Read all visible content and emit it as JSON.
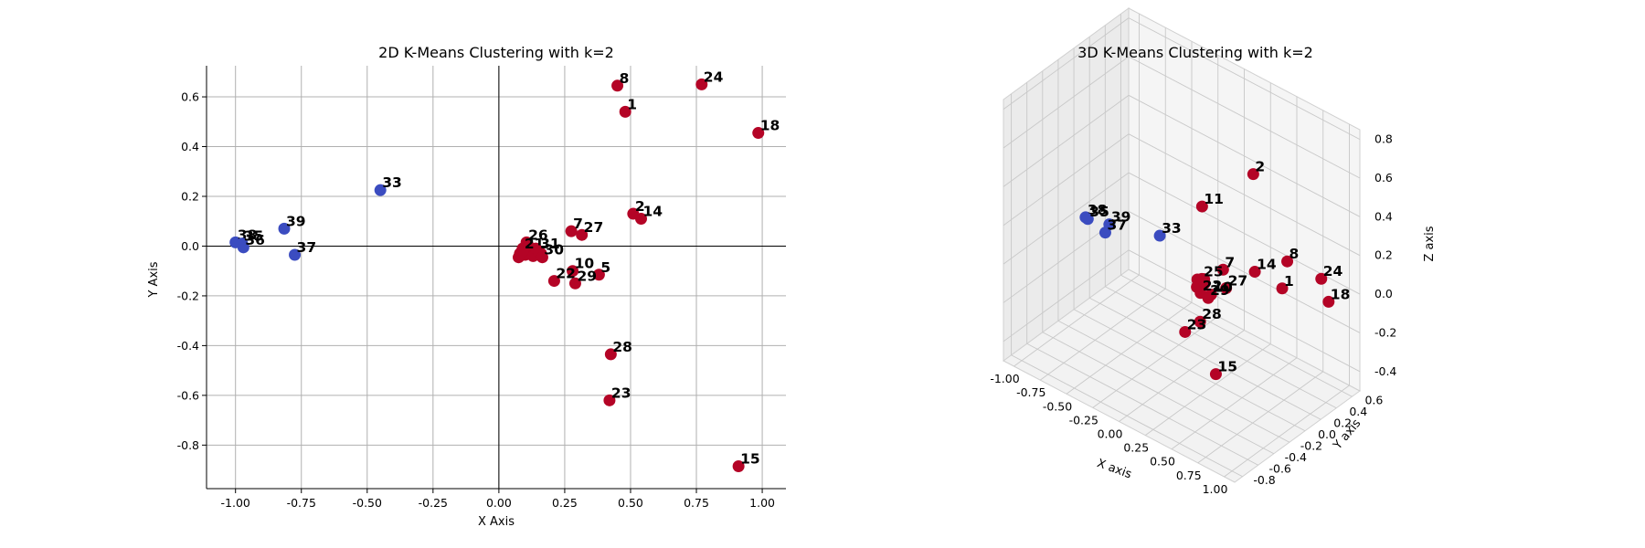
{
  "colors": {
    "cluster0": "#3b4cc0",
    "cluster1": "#b40426"
  },
  "chart_data": [
    {
      "type": "scatter",
      "title": "2D K-Means Clustering with k=2",
      "xlabel": "X Axis",
      "ylabel": "Y Axis",
      "xlim": [
        -1.11,
        1.09
      ],
      "ylim": [
        -0.975,
        0.725
      ],
      "xticks": [
        "-1.00",
        "-0.75",
        "-0.50",
        "-0.25",
        "0.00",
        "0.25",
        "0.50",
        "0.75",
        "1.00"
      ],
      "yticks": [
        "-0.8",
        "-0.6",
        "-0.4",
        "-0.2",
        "0.0",
        "0.2",
        "0.4",
        "0.6"
      ],
      "grid": true,
      "points": [
        {
          "label": "8",
          "x": 0.45,
          "y": 0.645,
          "cluster": 1
        },
        {
          "label": "24",
          "x": 0.77,
          "y": 0.65,
          "cluster": 1
        },
        {
          "label": "1",
          "x": 0.48,
          "y": 0.54,
          "cluster": 1
        },
        {
          "label": "18",
          "x": 0.985,
          "y": 0.455,
          "cluster": 1
        },
        {
          "label": "33",
          "x": -0.45,
          "y": 0.225,
          "cluster": 0
        },
        {
          "label": "39",
          "x": -0.815,
          "y": 0.07,
          "cluster": 0
        },
        {
          "label": "37",
          "x": -0.775,
          "y": -0.035,
          "cluster": 0
        },
        {
          "label": "38",
          "x": -1.0,
          "y": 0.015,
          "cluster": 0
        },
        {
          "label": "35",
          "x": -0.975,
          "y": 0.01,
          "cluster": 0
        },
        {
          "label": "36",
          "x": -0.97,
          "y": -0.005,
          "cluster": 0
        },
        {
          "label": "2",
          "x": 0.51,
          "y": 0.13,
          "cluster": 1
        },
        {
          "label": "14",
          "x": 0.54,
          "y": 0.11,
          "cluster": 1
        },
        {
          "label": "7",
          "x": 0.275,
          "y": 0.06,
          "cluster": 1
        },
        {
          "label": "27",
          "x": 0.315,
          "y": 0.045,
          "cluster": 1
        },
        {
          "label": "26",
          "x": 0.105,
          "y": 0.015,
          "cluster": 1
        },
        {
          "label": "21",
          "x": 0.09,
          "y": -0.02,
          "cluster": 1
        },
        {
          "label": "31",
          "x": 0.15,
          "y": -0.02,
          "cluster": 1
        },
        {
          "label": "30",
          "x": 0.165,
          "y": -0.045,
          "cluster": 1
        },
        {
          "label": "10",
          "x": 0.28,
          "y": -0.1,
          "cluster": 1
        },
        {
          "label": "5",
          "x": 0.38,
          "y": -0.115,
          "cluster": 1
        },
        {
          "label": "22",
          "x": 0.21,
          "y": -0.14,
          "cluster": 1
        },
        {
          "label": "29",
          "x": 0.29,
          "y": -0.15,
          "cluster": 1
        },
        {
          "label": "28",
          "x": 0.425,
          "y": -0.435,
          "cluster": 1
        },
        {
          "label": "23",
          "x": 0.42,
          "y": -0.62,
          "cluster": 1
        },
        {
          "label": "15",
          "x": 0.91,
          "y": -0.885,
          "cluster": 1
        }
      ]
    },
    {
      "type": "scatter",
      "title": "3D K-Means Clustering with k=2",
      "xlabel": "X axis",
      "ylabel": "Y axis",
      "zlabel": "Z axis",
      "xticks": [
        "-1.00",
        "-0.75",
        "-0.50",
        "-0.25",
        "0.00",
        "0.25",
        "0.50",
        "0.75",
        "1.00"
      ],
      "yticks": [
        "-0.8",
        "-0.6",
        "-0.4",
        "-0.2",
        "0.0",
        "0.2",
        "0.4",
        "0.6"
      ],
      "zticks": [
        "-0.4",
        "-0.2",
        "0.0",
        "0.2",
        "0.4",
        "0.6",
        "0.8"
      ],
      "grid": true,
      "points": [
        {
          "label": "2",
          "x": 0.51,
          "y": 0.13,
          "z": 0.62,
          "cluster": 1
        },
        {
          "label": "11",
          "x": 0.12,
          "y": 0.0,
          "z": 0.38,
          "cluster": 1
        },
        {
          "label": "14",
          "x": 0.54,
          "y": 0.11,
          "z": 0.13,
          "cluster": 1
        },
        {
          "label": "7",
          "x": 0.275,
          "y": 0.06,
          "z": 0.08,
          "cluster": 1
        },
        {
          "label": "27",
          "x": 0.315,
          "y": 0.045,
          "z": 0.0,
          "cluster": 1
        },
        {
          "label": "8",
          "x": 0.45,
          "y": 0.645,
          "z": 0.0,
          "cluster": 1
        },
        {
          "label": "24",
          "x": 0.77,
          "y": 0.65,
          "z": 0.0,
          "cluster": 1
        },
        {
          "label": "1",
          "x": 0.48,
          "y": 0.54,
          "z": -0.1,
          "cluster": 1
        },
        {
          "label": "18",
          "x": 0.985,
          "y": 0.455,
          "z": 0.0,
          "cluster": 1
        },
        {
          "label": "33",
          "x": -0.45,
          "y": 0.225,
          "z": 0.0,
          "cluster": 0
        },
        {
          "label": "39",
          "x": -0.815,
          "y": 0.07,
          "z": 0.0,
          "cluster": 0
        },
        {
          "label": "37",
          "x": -0.775,
          "y": -0.035,
          "z": 0.0,
          "cluster": 0
        },
        {
          "label": "38",
          "x": -1.0,
          "y": 0.015,
          "z": 0.0,
          "cluster": 0
        },
        {
          "label": "35",
          "x": -0.975,
          "y": 0.01,
          "z": 0.0,
          "cluster": 0
        },
        {
          "label": "25",
          "x": 0.11,
          "y": 0.01,
          "z": 0.0,
          "cluster": 1
        },
        {
          "label": "10",
          "x": 0.28,
          "y": -0.1,
          "z": 0.0,
          "cluster": 1
        },
        {
          "label": "22",
          "x": 0.21,
          "y": -0.14,
          "z": 0.0,
          "cluster": 1
        },
        {
          "label": "29",
          "x": 0.29,
          "y": -0.15,
          "z": 0.0,
          "cluster": 1
        },
        {
          "label": "28",
          "x": 0.425,
          "y": -0.435,
          "z": 0.0,
          "cluster": 1
        },
        {
          "label": "23",
          "x": 0.42,
          "y": -0.62,
          "z": 0.0,
          "cluster": 1
        },
        {
          "label": "15",
          "x": 0.91,
          "y": -0.885,
          "z": 0.0,
          "cluster": 1
        }
      ]
    }
  ]
}
